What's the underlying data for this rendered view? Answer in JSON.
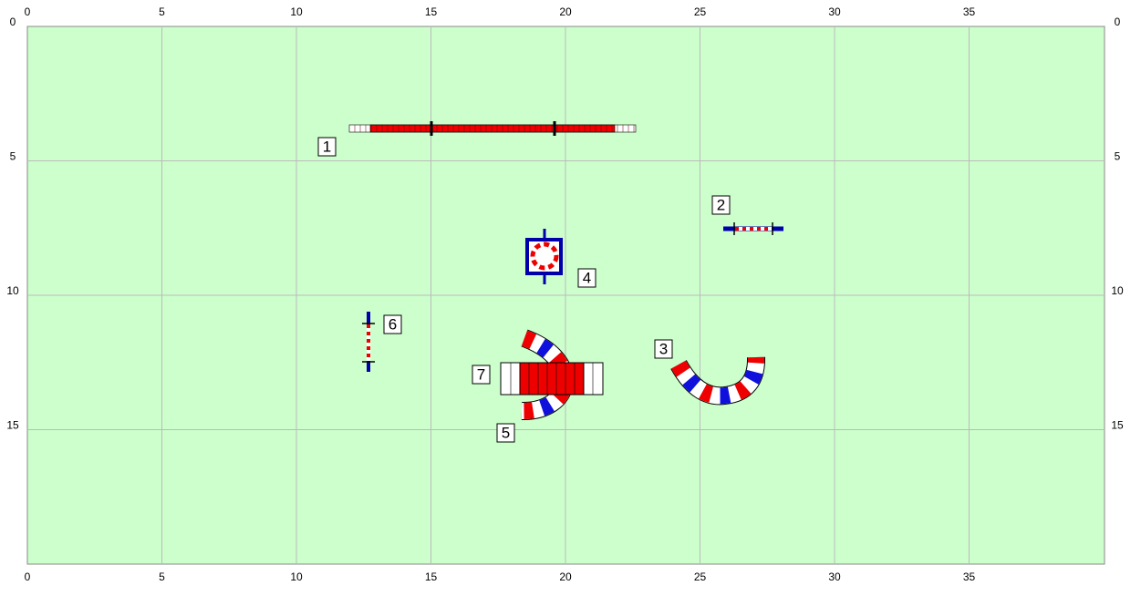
{
  "grid": {
    "xticks": [
      0,
      5,
      10,
      15,
      20,
      25,
      30,
      35
    ],
    "yticks": [
      0,
      5,
      10,
      15
    ]
  },
  "obstacles": [
    {
      "label": "1"
    },
    {
      "label": "2"
    },
    {
      "label": "3"
    },
    {
      "label": "4"
    },
    {
      "label": "5"
    },
    {
      "label": "6"
    },
    {
      "label": "7"
    }
  ]
}
